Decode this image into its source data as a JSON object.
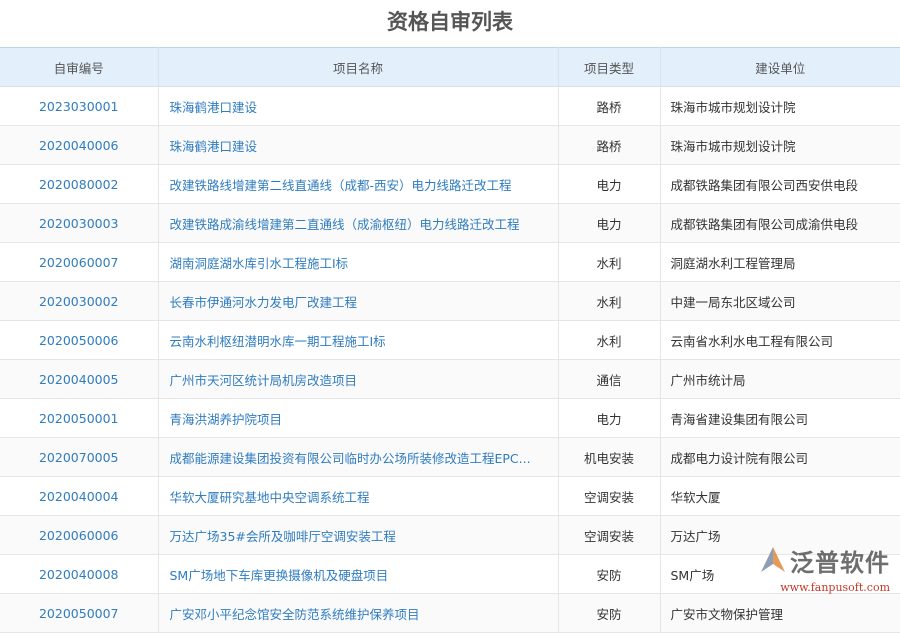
{
  "title": "资格自审列表",
  "columns": [
    "自审编号",
    "项目名称",
    "项目类型",
    "建设单位"
  ],
  "rows": [
    {
      "code": "2023030001",
      "name": "珠海鹤港口建设",
      "type": "路桥",
      "unit": "珠海市城市规划设计院"
    },
    {
      "code": "2020040006",
      "name": "珠海鹤港口建设",
      "type": "路桥",
      "unit": "珠海市城市规划设计院"
    },
    {
      "code": "2020080002",
      "name": "改建铁路线增建第二线直通线（成都-西安）电力线路迁改工程",
      "type": "电力",
      "unit": "成都铁路集团有限公司西安供电段"
    },
    {
      "code": "2020030003",
      "name": "改建铁路成渝线增建第二直通线（成渝枢纽）电力线路迁改工程",
      "type": "电力",
      "unit": "成都铁路集团有限公司成渝供电段"
    },
    {
      "code": "2020060007",
      "name": "湖南洞庭湖水库引水工程施工I标",
      "type": "水利",
      "unit": "洞庭湖水利工程管理局"
    },
    {
      "code": "2020030002",
      "name": "长春市伊通河水力发电厂改建工程",
      "type": "水利",
      "unit": "中建一局东北区域公司"
    },
    {
      "code": "2020050006",
      "name": "云南水利枢纽潜明水库一期工程施工I标",
      "type": "水利",
      "unit": "云南省水利水电工程有限公司"
    },
    {
      "code": "2020040005",
      "name": "广州市天河区统计局机房改造项目",
      "type": "通信",
      "unit": "广州市统计局"
    },
    {
      "code": "2020050001",
      "name": "青海洪湖养护院项目",
      "type": "电力",
      "unit": "青海省建设集团有限公司"
    },
    {
      "code": "2020070005",
      "name": "成都能源建设集团投资有限公司临时办公场所装修改造工程EPC...",
      "type": "机电安装",
      "unit": "成都电力设计院有限公司"
    },
    {
      "code": "2020040004",
      "name": "华软大厦研究基地中央空调系统工程",
      "type": "空调安装",
      "unit": "华软大厦"
    },
    {
      "code": "2020060006",
      "name": "万达广场35#会所及咖啡厅空调安装工程",
      "type": "空调安装",
      "unit": "万达广场"
    },
    {
      "code": "2020040008",
      "name": "SM广场地下车库更换摄像机及硬盘项目",
      "type": "安防",
      "unit": "SM广场"
    },
    {
      "code": "2020050007",
      "name": "广安邓小平纪念馆安全防范系统维护保养项目",
      "type": "安防",
      "unit": "广安市文物保护管理"
    }
  ],
  "watermark": {
    "brand": "泛普软件",
    "url": "www.fanpusoft.com",
    "icon": "fanpu-logo-icon"
  },
  "colors": {
    "link": "#2f7cc0",
    "header_bg": "#e3f0fb"
  }
}
